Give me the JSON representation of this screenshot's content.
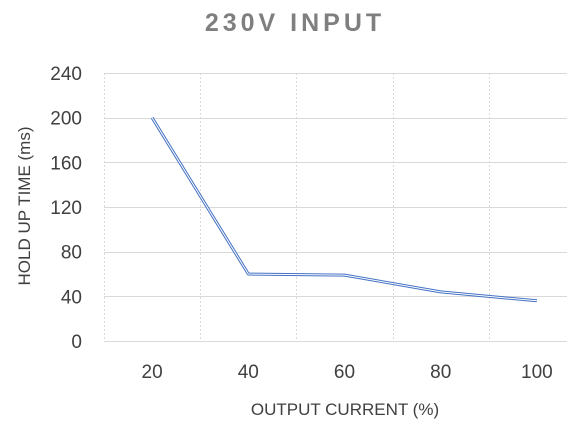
{
  "chart_data": {
    "type": "line",
    "title": "230V INPUT",
    "xlabel": "OUTPUT CURRENT (%)",
    "ylabel": "HOLD UP TIME (ms)",
    "x": [
      20,
      40,
      60,
      80,
      100
    ],
    "series": [
      {
        "name": "",
        "values": [
          200,
          60,
          59,
          44,
          36
        ]
      }
    ],
    "xlim": [
      10,
      110
    ],
    "ylim": [
      0,
      240
    ],
    "x_ticks": [
      20,
      40,
      60,
      80,
      100
    ],
    "y_ticks": [
      0,
      40,
      80,
      120,
      160,
      200,
      240
    ],
    "grid": true,
    "legend": "none",
    "line_color": "#4472c4"
  }
}
